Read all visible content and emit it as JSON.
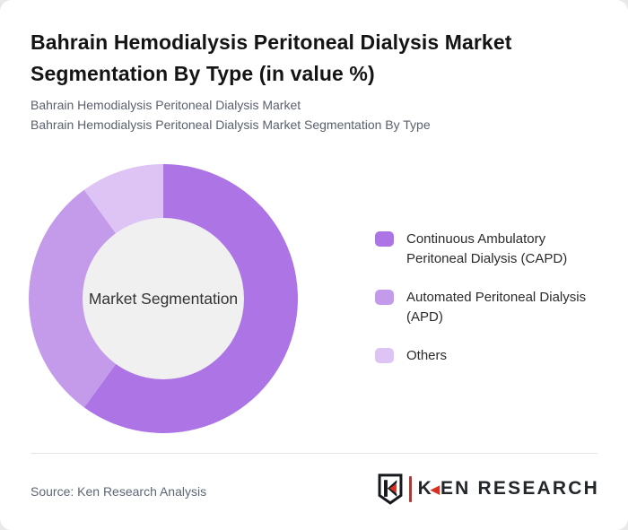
{
  "header": {
    "title_lines": [
      "Bahrain Hemodialysis Peritoneal Dialysis Market",
      "Segmentation By Type (in value %)"
    ],
    "subtitle_lines": [
      "Bahrain Hemodialysis Peritoneal Dialysis Market",
      "Bahrain Hemodialysis Peritoneal Dialysis Market Segmentation By Type"
    ]
  },
  "chart_data": {
    "type": "pie",
    "donut": true,
    "title": "Bahrain Hemodialysis Peritoneal Dialysis Market Segmentation By Type (in value %)",
    "center_label": "Market Segmentation",
    "categories": [
      "Continuous Ambulatory Peritoneal Dialysis (CAPD)",
      "Automated Peritoneal Dialysis (APD)",
      "Others"
    ],
    "values": [
      60,
      30,
      10
    ],
    "unit": "%",
    "colors": [
      "#ad74e6",
      "#c49bea",
      "#ddc4f4"
    ],
    "inner_circle_color": "#f0f0f0",
    "start_angle_deg": 0,
    "direction": "clockwise",
    "legend_position": "right"
  },
  "legend": {
    "items": [
      {
        "label": "Continuous Ambulatory Peritoneal Dialysis (CAPD)",
        "color": "#ad74e6"
      },
      {
        "label": "Automated Peritoneal Dialysis (APD)",
        "color": "#c49bea"
      },
      {
        "label": "Others",
        "color": "#ddc4f4"
      }
    ]
  },
  "footer": {
    "source": "Source: Ken Research Analysis",
    "logo": {
      "shield_icon": "ken-research-shield",
      "wordmark_k": "K",
      "wordmark_rest": "EN RESEARCH",
      "accent_color": "#d93025",
      "text_color": "#23262a"
    }
  }
}
